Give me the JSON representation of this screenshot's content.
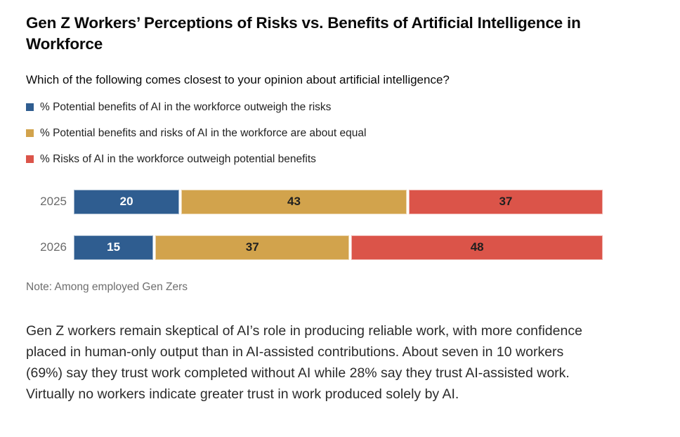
{
  "header": {
    "title": "Gen Z Workers’ Perceptions of Risks vs. Benefits of Artificial Intelligence in Workforce",
    "subtitle": "Which of the following comes closest to your opinion about artificial intelligence?"
  },
  "legend": {
    "items": [
      {
        "label": "% Potential benefits of AI in the workforce outweigh the risks",
        "color": "#2F5D90"
      },
      {
        "label": "% Potential benefits and risks of AI in the workforce are about equal",
        "color": "#D2A34C"
      },
      {
        "label": "% Risks of AI in the workforce outweigh potential benefits",
        "color": "#DB5449"
      }
    ]
  },
  "chart_data": {
    "type": "bar",
    "orientation": "horizontal",
    "stacked": true,
    "unit": "%",
    "categories": [
      "2025",
      "2026"
    ],
    "series": [
      {
        "name": "% Potential benefits of AI in the workforce outweigh the risks",
        "color": "#2F5D90",
        "value_label_color": "#ffffff",
        "values": [
          20,
          15
        ]
      },
      {
        "name": "% Potential benefits and risks of AI in the workforce are about equal",
        "color": "#D2A34C",
        "value_label_color": "#1f1f1f",
        "values": [
          43,
          37
        ]
      },
      {
        "name": "% Risks of AI in the workforce outweigh potential benefits",
        "color": "#DB5449",
        "value_label_color": "#1f1f1f",
        "values": [
          37,
          48
        ]
      }
    ],
    "xlim": [
      0,
      100
    ],
    "grid": false,
    "legend_position": "top",
    "value_labels": "inside-center",
    "category_label_color": "#6b6b6b"
  },
  "note": "Note: Among employed Gen Zers",
  "body_paragraph": "Gen Z workers remain skeptical of AI’s role in producing reliable work, with more confidence placed in human-only output than in AI-assisted contributions. About seven in 10 workers (69%) say they trust work completed without AI while 28% say they trust AI-assisted work. Virtually no workers indicate greater trust in work produced solely by AI."
}
